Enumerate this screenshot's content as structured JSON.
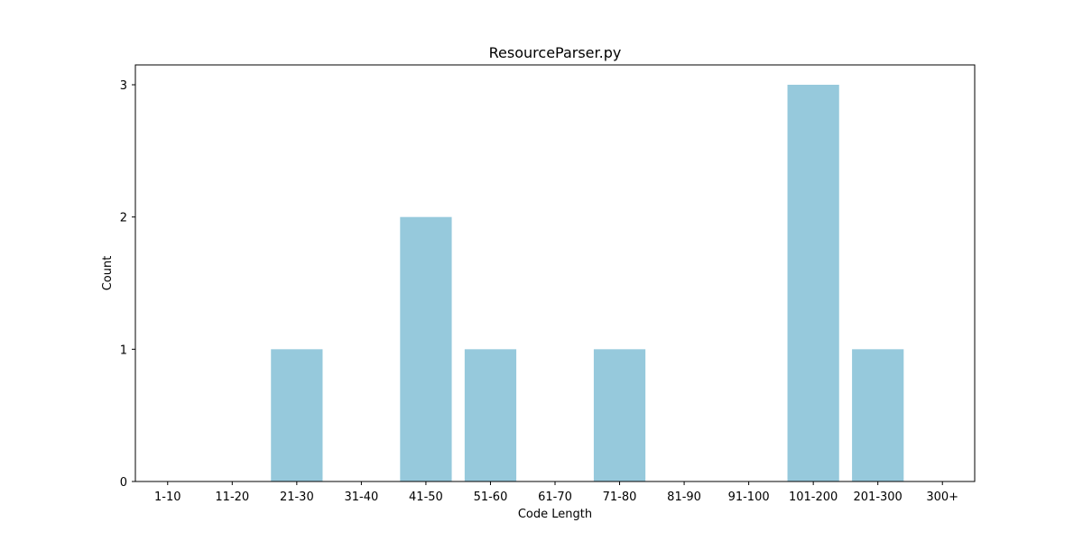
{
  "chart_data": {
    "type": "bar",
    "title": "ResourceParser.py",
    "xlabel": "Code Length",
    "ylabel": "Count",
    "categories": [
      "1-10",
      "11-20",
      "21-30",
      "31-40",
      "41-50",
      "51-60",
      "61-70",
      "71-80",
      "81-90",
      "91-100",
      "101-200",
      "201-300",
      "300+"
    ],
    "values": [
      0,
      0,
      1,
      0,
      2,
      1,
      0,
      1,
      0,
      0,
      3,
      1,
      0
    ],
    "ylim": [
      0,
      3.15
    ],
    "yticks": [
      "0",
      "1",
      "2",
      "3"
    ],
    "bar_color": "#96c9dc",
    "grid": false,
    "legend": "none"
  }
}
